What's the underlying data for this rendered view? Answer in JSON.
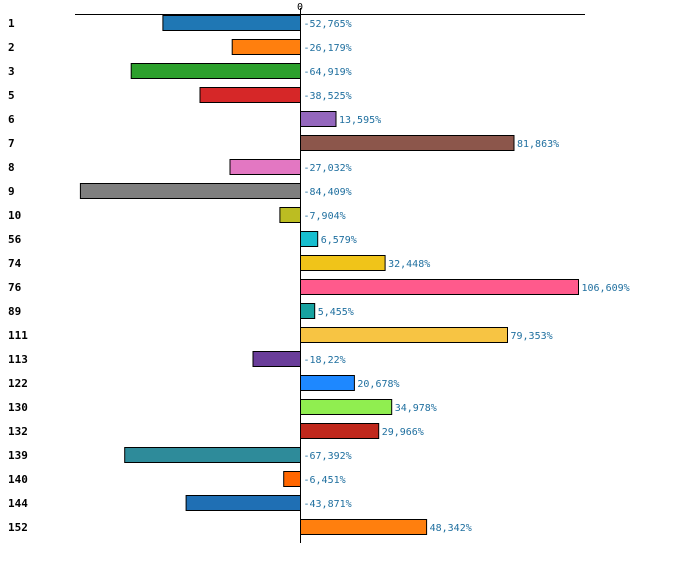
{
  "chart_data": {
    "type": "bar",
    "orientation": "horizontal",
    "title": "",
    "xlabel": "",
    "ylabel": "",
    "zero_tick_label": "0",
    "xlim": [
      -90,
      110
    ],
    "grid": false,
    "categories": [
      "1",
      "2",
      "3",
      "5",
      "6",
      "7",
      "8",
      "9",
      "10",
      "56",
      "74",
      "76",
      "89",
      "111",
      "113",
      "122",
      "130",
      "132",
      "139",
      "140",
      "144",
      "152"
    ],
    "values": [
      -52.765,
      -26.179,
      -64.919,
      -38.525,
      13.595,
      81.863,
      -27.032,
      -84.409,
      -7.904,
      6.579,
      32.448,
      106.609,
      5.455,
      79.353,
      -18.22,
      20.678,
      34.978,
      29.966,
      -67.392,
      -6.451,
      -43.871,
      48.342
    ],
    "value_labels": [
      "-52,765%",
      "-26,179%",
      "-64,919%",
      "-38,525%",
      "13,595%",
      "81,863%",
      "-27,032%",
      "-84,409%",
      "-7,904%",
      "6,579%",
      "32,448%",
      "106,609%",
      "5,455%",
      "79,353%",
      "-18,22%",
      "20,678%",
      "34,978%",
      "29,966%",
      "-67,392%",
      "-6,451%",
      "-43,871%",
      "48,342%"
    ],
    "colors": [
      "#1f77b4",
      "#ff7f0e",
      "#2ca02c",
      "#d62728",
      "#9467bd",
      "#8c564b",
      "#e377c2",
      "#7f7f7f",
      "#bcbd22",
      "#17becf",
      "#f0c419",
      "#ff5a8c",
      "#17a2a0",
      "#f7c443",
      "#6a3d9a",
      "#1e88ff",
      "#90ee50",
      "#c0281c",
      "#2e8b9a",
      "#ff6600",
      "#1f6fb4",
      "#ff7f0e"
    ]
  }
}
